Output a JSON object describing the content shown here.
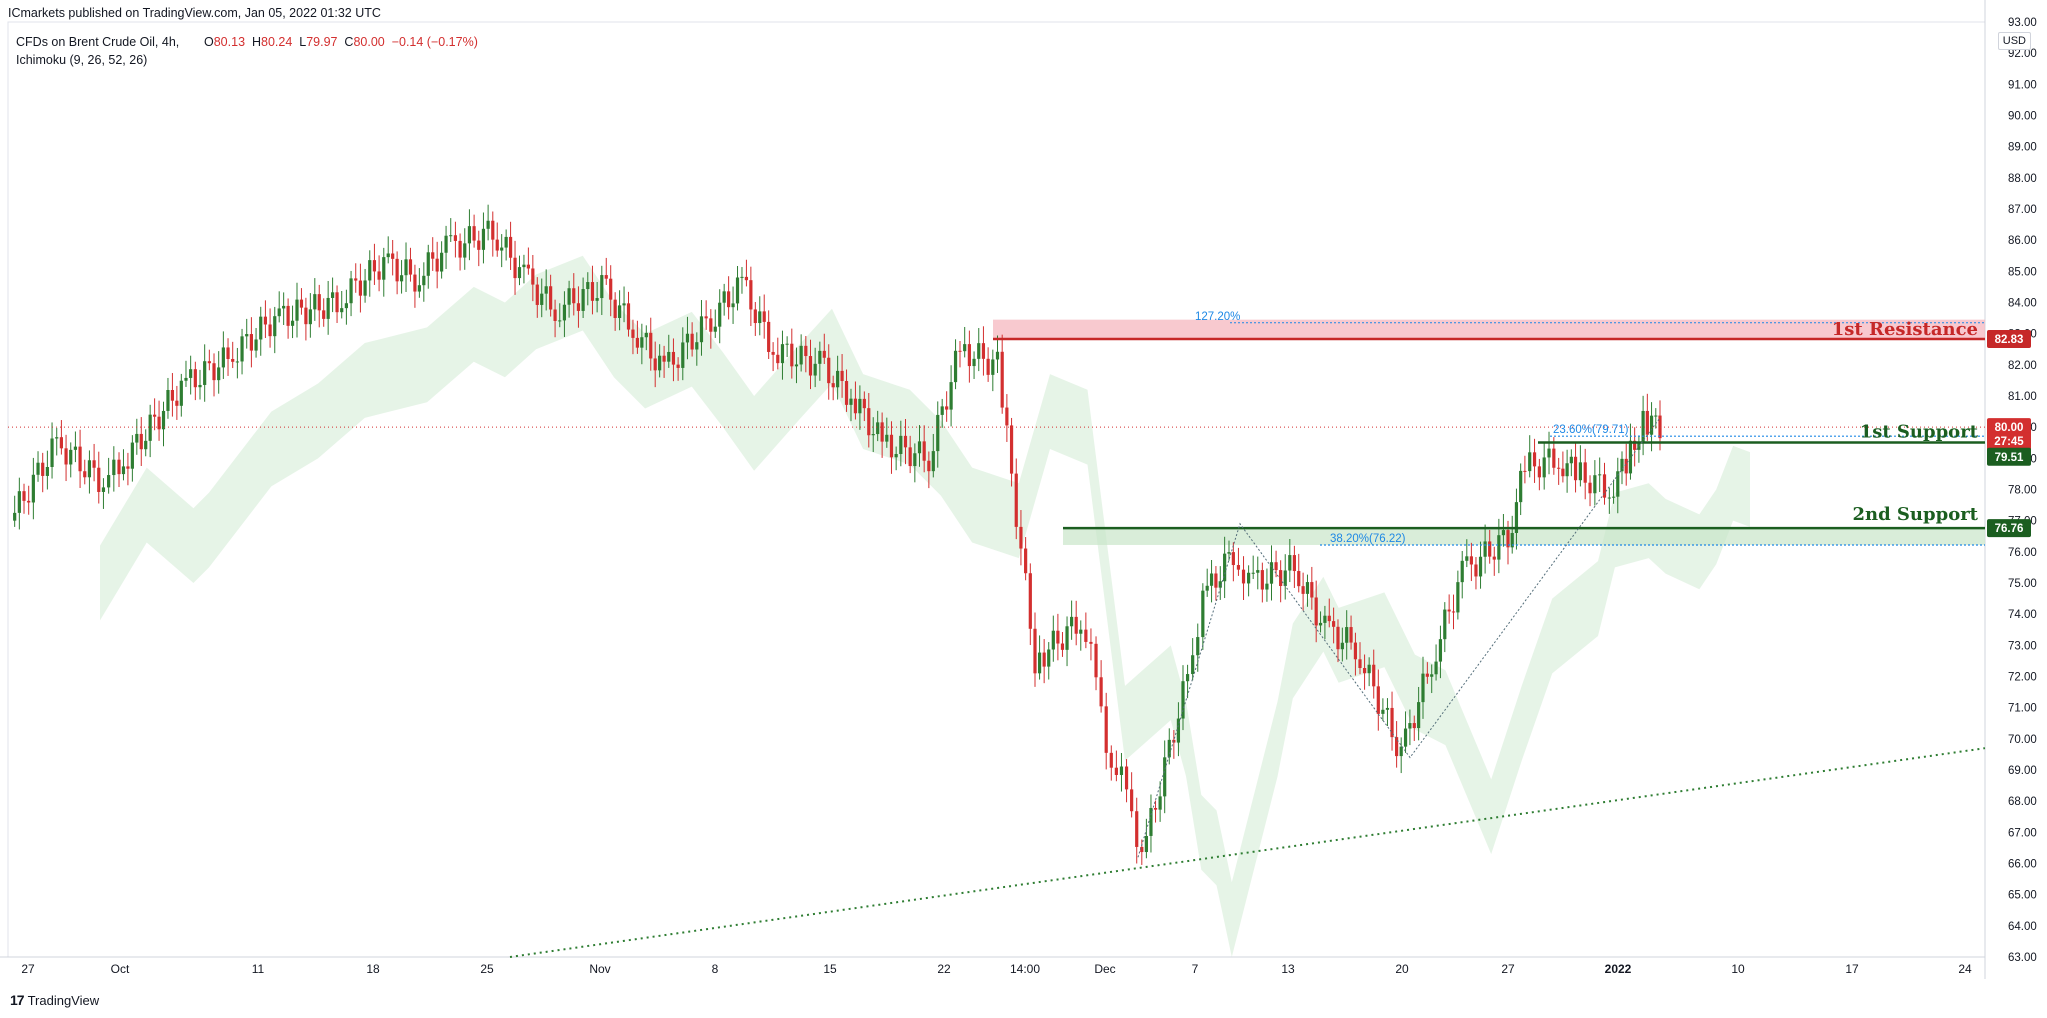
{
  "header": {
    "published_by": "ICmarkets published on TradingView.com, Jan 05, 2022 01:32 UTC",
    "symbol": "CFDs on Brent Crude Oil, 4h,",
    "indicator": "Ichimoku (9, 26, 52, 26)",
    "ohlc": {
      "o_label": "O",
      "o": "80.13",
      "h_label": "H",
      "h": "80.24",
      "l_label": "L",
      "l": "79.97",
      "c_label": "C",
      "c": "80.00",
      "change": "−0.14 (−0.17%)"
    }
  },
  "footer": {
    "logo_mark": "17",
    "logo_text": "TradingView"
  },
  "currency": "USD",
  "colors": {
    "bull": "#2e7d32",
    "bear": "#d32f2f",
    "resistance": "#c62828",
    "support": "#1b5e20",
    "fib": "#1e88e5",
    "trendline": "#2e7d32"
  },
  "chart_data": {
    "type": "candlestick",
    "title": "CFDs on Brent Crude Oil, 4h",
    "ylim": [
      63,
      93
    ],
    "y_ticks": [
      "63.00",
      "64.00",
      "65.00",
      "66.00",
      "67.00",
      "68.00",
      "69.00",
      "70.00",
      "71.00",
      "72.00",
      "73.00",
      "74.00",
      "75.00",
      "76.00",
      "77.00",
      "78.00",
      "79.00",
      "80.00",
      "81.00",
      "82.00",
      "83.00",
      "84.00",
      "85.00",
      "86.00",
      "87.00",
      "88.00",
      "89.00",
      "90.00",
      "91.00",
      "92.00",
      "93.00"
    ],
    "x_ticks": [
      "27",
      "Oct",
      "11",
      "18",
      "25",
      "Nov",
      "8",
      "15",
      "22",
      "14:00",
      "Dec",
      "7",
      "13",
      "20",
      "27",
      "2022",
      "10",
      "17",
      "24"
    ],
    "price_path": [
      [
        "Sep 24",
        77.0
      ],
      [
        "Sep 27",
        79.5
      ],
      [
        "Sep 30",
        78.2
      ],
      [
        "Oct 1",
        78.7
      ],
      [
        "Oct 5",
        81.3
      ],
      [
        "Oct 8",
        82.2
      ],
      [
        "Oct 11",
        83.5
      ],
      [
        "Oct 15",
        84.0
      ],
      [
        "Oct 18",
        85.3
      ],
      [
        "Oct 20",
        84.8
      ],
      [
        "Oct 22",
        85.7
      ],
      [
        "Oct 25",
        86.3
      ],
      [
        "Oct 27",
        84.8
      ],
      [
        "Oct 29",
        83.8
      ],
      [
        "Nov 1",
        84.5
      ],
      [
        "Nov 3",
        83.2
      ],
      [
        "Nov 5",
        81.8
      ],
      [
        "Nov 8",
        83.5
      ],
      [
        "Nov 10",
        84.6
      ],
      [
        "Nov 12",
        82.5
      ],
      [
        "Nov 15",
        82.0
      ],
      [
        "Nov 17",
        81.0
      ],
      [
        "Nov 19",
        79.5
      ],
      [
        "Nov 22",
        79.0
      ],
      [
        "Nov 24",
        82.5
      ],
      [
        "Nov 25",
        82.0
      ],
      [
        "Nov 26",
        72.5
      ],
      [
        "Nov 29",
        73.8
      ],
      [
        "Nov 30",
        72.0
      ],
      [
        "Dec 1",
        69.0
      ],
      [
        "Dec 2",
        68.5
      ],
      [
        "Dec 3",
        66.2
      ],
      [
        "Dec 6",
        72.0
      ],
      [
        "Dec 7",
        74.5
      ],
      [
        "Dec 9",
        76.0
      ],
      [
        "Dec 10",
        75.0
      ],
      [
        "Dec 13",
        75.5
      ],
      [
        "Dec 15",
        73.5
      ],
      [
        "Dec 17",
        73.0
      ],
      [
        "Dec 20",
        69.5
      ],
      [
        "Dec 22",
        72.5
      ],
      [
        "Dec 24",
        75.3
      ],
      [
        "Dec 27",
        76.5
      ],
      [
        "Dec 28",
        78.7
      ],
      [
        "Dec 30",
        79.0
      ],
      [
        "Dec 31",
        78.5
      ],
      [
        "Jan 2",
        78.0
      ],
      [
        "Jan 3",
        78.8
      ],
      [
        "Jan 4",
        80.2
      ],
      [
        "Jan 5",
        80.0
      ]
    ],
    "levels": [
      {
        "label": "1st Resistance",
        "price": "82.83",
        "kind": "resistance"
      },
      {
        "label": "1st Support",
        "price": "79.51",
        "kind": "support"
      },
      {
        "label": "2nd Support",
        "price": "76.76",
        "kind": "support"
      }
    ],
    "fib_labels": [
      {
        "text": "127.20%",
        "price": 83.35
      },
      {
        "text": "23.60%(79.71)",
        "price": 79.71
      },
      {
        "text": "38.20%(76.22)",
        "price": 76.22
      }
    ],
    "price_tags": [
      {
        "text": "82.83",
        "price": 82.83,
        "color": "#c62828"
      },
      {
        "text": "80.00",
        "price": 80.0,
        "color": "#d32f2f"
      },
      {
        "text": "27:45",
        "price": 79.55,
        "color": "#d32f2f"
      },
      {
        "text": "79.51",
        "price": 79.05,
        "color": "#1b5e20"
      },
      {
        "text": "76.76",
        "price": 76.76,
        "color": "#1b5e20"
      }
    ],
    "current_price": 80.0
  }
}
